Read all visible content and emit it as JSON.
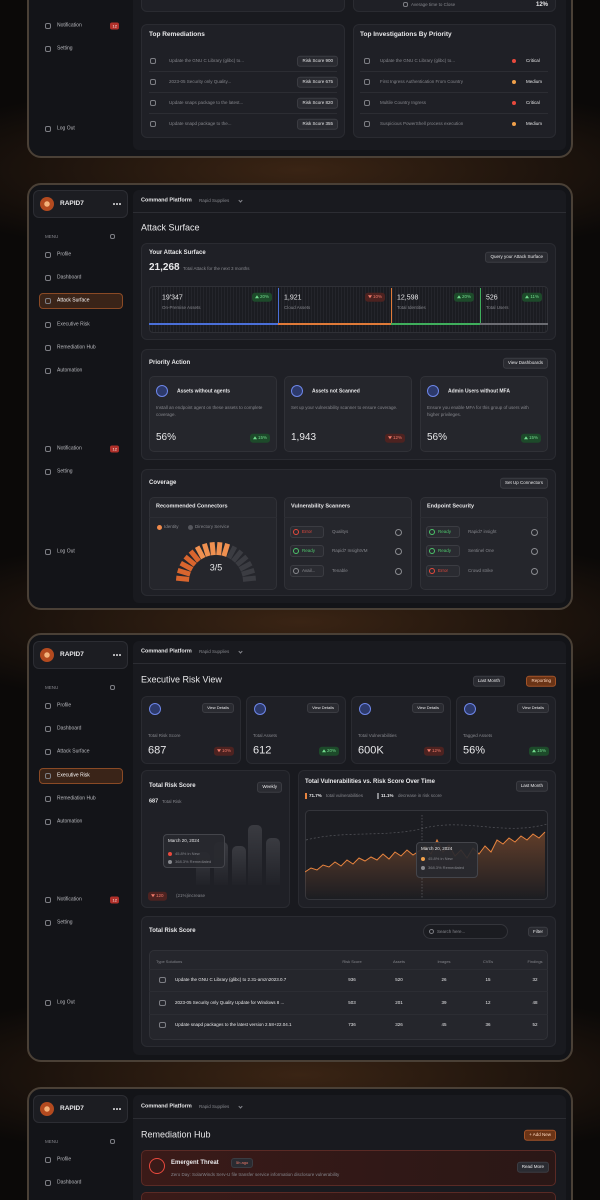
{
  "panel1": {
    "sidebar": {
      "notification": "Notification",
      "notification_badge": "12",
      "setting": "Setting",
      "logout": "Log Out"
    },
    "summary": {
      "label": "Average time to Close",
      "value": "12%"
    },
    "top_remediations": {
      "title": "Top Remediations",
      "rows": [
        {
          "text": "Update the GNU C Library (glibc) to...",
          "score": "Risk Score 900"
        },
        {
          "text": "2023-05 Security only Quality...",
          "score": "Risk Score 675"
        },
        {
          "text": "Update snaps package to the latest...",
          "score": "Risk Score 820"
        },
        {
          "text": "Update snapd package to the...",
          "score": "Risk Score 355"
        }
      ]
    },
    "top_investigations": {
      "title": "Top Investigations By Priority",
      "rows": [
        {
          "text": "Update the GNU C Library (glibc) to...",
          "priority": "Critical",
          "color": "#e8493d"
        },
        {
          "text": "First Ingress Authentication From Country",
          "priority": "Medium",
          "color": "#f0a04a"
        },
        {
          "text": "Multile Country Ingress",
          "priority": "Critical",
          "color": "#e8493d"
        },
        {
          "text": "Suspicious PowerShell process execution",
          "priority": "Medium",
          "color": "#f0a04a"
        }
      ]
    }
  },
  "panel2": {
    "sidebar": {
      "brand": "RAPID7",
      "menu": "MENU",
      "nav": [
        "Profile",
        "Dashboard",
        "Attack Surface",
        "Executive Risk",
        "Remediation Hub",
        "Automation"
      ],
      "notification": "Notification",
      "notification_badge": "12",
      "setting": "Setting",
      "logout": "Log Out"
    },
    "header": {
      "platform": "Command Platform",
      "org": "Rapid Supplies"
    },
    "title": "Attack Surface",
    "attack_surface": {
      "title": "Your Attack Surface",
      "total": "21,268",
      "subtitle": "Total Attack for the next 3 months",
      "button": "Query your Attack Surface",
      "stats": [
        {
          "value": "19'347",
          "label": "On-Premise Assets",
          "change": "20%",
          "trend": "up",
          "color": "#4a6fd8"
        },
        {
          "value": "1,921",
          "label": "Cloud Assets",
          "change": "10%",
          "trend": "down",
          "color": "#e07a38"
        },
        {
          "value": "12,598",
          "label": "Total Identities",
          "change": "20%",
          "trend": "up",
          "color": "#3fae5c"
        },
        {
          "value": "526",
          "label": "Total Users",
          "change": "11%",
          "trend": "up",
          "color": "#6b6c72"
        }
      ]
    },
    "priority_action": {
      "title": "Priority Action",
      "button": "View Dashboards",
      "cards": [
        {
          "title": "Assets without agents",
          "description": "Install an endpoint agent on these assets to complete coverage.",
          "value": "56%",
          "change": "15%",
          "trend": "up"
        },
        {
          "title": "Assets not Scanned",
          "description": "Set up your vulnerability scanner to ensure coverage.",
          "value": "1,943",
          "change": "12%",
          "trend": "down"
        },
        {
          "title": "Admin Users without MFA",
          "description": "Ensure you enable MFA for this group of users with higher privileges.",
          "value": "56%",
          "change": "15%",
          "trend": "up"
        }
      ]
    },
    "coverage": {
      "title": "Coverage",
      "button": "Set Up Connectors",
      "recommended": {
        "title": "Recommended Connectors",
        "legend": [
          {
            "label": "Identity",
            "color": "#f08a4b"
          },
          {
            "label": "Directory Service",
            "color": "#55565c"
          }
        ],
        "progress": "3/5"
      },
      "scanners": {
        "title": "Vulnerability Scanners",
        "rows": [
          {
            "status": "Error",
            "name": "Qualitys",
            "color": "#e8493d"
          },
          {
            "status": "Ready",
            "name": "Rapid7 InsightVM",
            "color": "#4cc46a"
          },
          {
            "status": "Avail...",
            "name": "Tenable",
            "color": "#8a8b90"
          }
        ]
      },
      "endpoint": {
        "title": "Endpoint Security",
        "rows": [
          {
            "status": "Ready",
            "name": "Rapid7 insight",
            "color": "#4cc46a"
          },
          {
            "status": "Ready",
            "name": "Sentinel One",
            "color": "#4cc46a"
          },
          {
            "status": "Error",
            "name": "Crowd strike",
            "color": "#e8493d"
          }
        ]
      }
    }
  },
  "panel3": {
    "sidebar": {
      "brand": "RAPID7",
      "menu": "MENU",
      "nav": [
        "Profile",
        "Dashboard",
        "Attack Surface",
        "Executive Risk",
        "Remediation Hub",
        "Automation"
      ],
      "notification": "Notification",
      "notification_badge": "12",
      "setting": "Setting",
      "logout": "Log Out"
    },
    "header": {
      "platform": "Command Platform",
      "org": "Rapid Supplies"
    },
    "title": "Executive Risk View",
    "period": "Last Month",
    "report": "Reporting",
    "kpis": [
      {
        "action": "View Details",
        "label": "Total Risk Score",
        "value": "687",
        "change": "10%",
        "trend": "down"
      },
      {
        "action": "View Details",
        "label": "Total Assets",
        "value": "612",
        "change": "20%",
        "trend": "up"
      },
      {
        "action": "View Details",
        "label": "Total Vulnerabilities",
        "value": "600K",
        "change": "12%",
        "trend": "down"
      },
      {
        "action": "View Details",
        "label": "Tagged Assets",
        "value": "56%",
        "change": "15%",
        "trend": "up"
      }
    ],
    "risk_card": {
      "title": "Total Risk Score",
      "period": "Weekly",
      "total": "687",
      "total_label": "Total Risk",
      "tooltip": {
        "date": "March 20, 2024",
        "new": "45.8% in New",
        "remediated": "368.3% Remediated"
      },
      "badge": "120",
      "increase": "(21%)increase"
    },
    "trend_card": {
      "title": "Total Vulnerabilities vs. Risk Score Over Time",
      "period": "Last Month",
      "legend": [
        {
          "value": "71.7%",
          "label": "total vulnerabilities"
        },
        {
          "value": "11.1%",
          "label": "decrease in risk score"
        }
      ],
      "tooltip": {
        "date": "March 20, 2024",
        "new": "45.8% in New",
        "remediated": "368.3% Remediated"
      }
    },
    "table": {
      "title": "Total Risk Score",
      "search": "Search here...",
      "filter": "Filter",
      "headers": [
        "Type Solutions",
        "Risk Score",
        "Assets",
        "Images",
        "CVEs",
        "Findings"
      ],
      "rows": [
        [
          "Update the GNU C Library (glibc) to 2.31-amzn2023.0.7",
          "936",
          "520",
          "26",
          "15",
          "32"
        ],
        [
          "2023-05 Security only Quality Update for Windows 8 ...",
          "503",
          "201",
          "39",
          "12",
          "48"
        ],
        [
          "Update snapd packages to the latest version 2.58+22.04.1",
          "736",
          "326",
          "45",
          "36",
          "52"
        ]
      ]
    }
  },
  "panel4": {
    "sidebar": {
      "brand": "RAPID7",
      "menu": "MENU",
      "nav": [
        "Profile",
        "Dashboard"
      ]
    },
    "header": {
      "platform": "Command Platform",
      "org": "Rapid Supplies"
    },
    "title": "Remediation Hub",
    "add": "+ Add New",
    "threat": {
      "title": "Emergent Threat",
      "time": "5h ago",
      "description": "Zero Day: SolarWinds Serv-U file transfer service information disclosure vulnerability",
      "button": "Read More"
    }
  }
}
